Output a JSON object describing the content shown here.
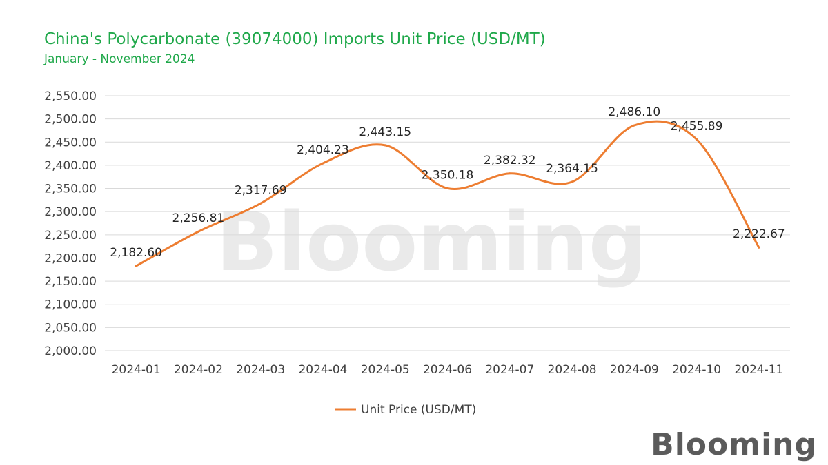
{
  "header": {
    "title": "China's Polycarbonate (39074000) Imports Unit Price (USD/MT)",
    "subtitle": "January - November 2024"
  },
  "watermark": {
    "text": "Blooming"
  },
  "brand": {
    "logo_text": "Blooming"
  },
  "colors": {
    "title": "#1fa84a",
    "line": "#ed7d31",
    "grid": "#d9d9d9",
    "text": "#404040",
    "watermark": "#d9d9d9",
    "watermark_dot": "#8fd19e"
  },
  "chart_data": {
    "type": "line",
    "categories": [
      "2024-01",
      "2024-02",
      "2024-03",
      "2024-04",
      "2024-05",
      "2024-06",
      "2024-07",
      "2024-08",
      "2024-09",
      "2024-10",
      "2024-11"
    ],
    "series": [
      {
        "name": "Unit Price (USD/MT)",
        "values": [
          2182.6,
          2256.81,
          2317.69,
          2404.23,
          2443.15,
          2350.18,
          2382.32,
          2364.15,
          2486.1,
          2455.89,
          2222.67
        ]
      }
    ],
    "value_labels": [
      "2,182.60",
      "2,256.81",
      "2,317.69",
      "2,404.23",
      "2,443.15",
      "2,350.18",
      "2,382.32",
      "2,364.15",
      "2,486.10",
      "2,455.89",
      "2,222.67"
    ],
    "yticks": [
      "2,000.00",
      "2,050.00",
      "2,100.00",
      "2,150.00",
      "2,200.00",
      "2,250.00",
      "2,300.00",
      "2,350.00",
      "2,400.00",
      "2,450.00",
      "2,500.00",
      "2,550.00"
    ],
    "ylim": [
      2000,
      2550
    ],
    "grid": true,
    "smooth": true,
    "legend": "bottom"
  }
}
